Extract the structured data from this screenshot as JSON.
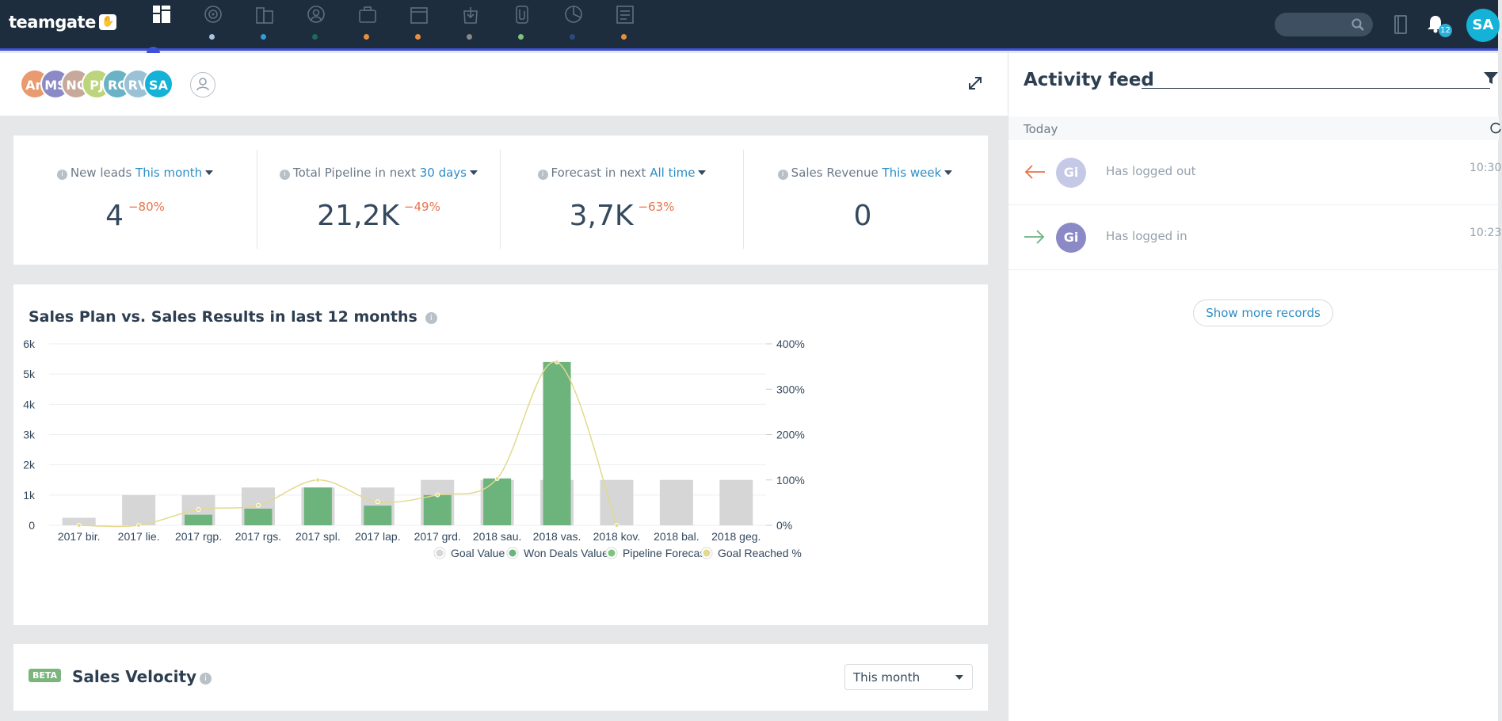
{
  "app": {
    "logo": "teamgate",
    "logo_mark": "✋"
  },
  "nav": {
    "items": [
      {
        "name": "dashboard",
        "dot": "#3f51d6"
      },
      {
        "name": "leads",
        "dot": "#a7c4e0"
      },
      {
        "name": "companies",
        "dot": "#2f9fd6"
      },
      {
        "name": "people",
        "dot": "#1f6b5a"
      },
      {
        "name": "deals",
        "dot": "#e98f3c"
      },
      {
        "name": "calendar",
        "dot": "#e98f3c"
      },
      {
        "name": "tasks",
        "dot": "#888888"
      },
      {
        "name": "files",
        "dot": "#7cc37c"
      },
      {
        "name": "reports",
        "dot": "#2c4a7c"
      },
      {
        "name": "documents",
        "dot": "#e98f3c"
      }
    ]
  },
  "header": {
    "notification_count": "12",
    "user_initials": "SA"
  },
  "users": [
    {
      "initials": "An",
      "color": "#e99a6f"
    },
    {
      "initials": "MS",
      "color": "#8c8ac6"
    },
    {
      "initials": "NC",
      "color": "#c6a99a"
    },
    {
      "initials": "PJ",
      "color": "#bcd47b"
    },
    {
      "initials": "RC",
      "color": "#6ab2c6"
    },
    {
      "initials": "RV",
      "color": "#9bc1d6"
    },
    {
      "initials": "SA",
      "color": "#14b2d6"
    }
  ],
  "kpis": [
    {
      "label": "New leads",
      "period": "This month",
      "value": "4",
      "delta": "−80%"
    },
    {
      "label": "Total Pipeline in next",
      "period": "30 days",
      "value": "21,2K",
      "delta": "−49%"
    },
    {
      "label": "Forecast in next",
      "period": "All time",
      "value": "3,7K",
      "delta": "−63%"
    },
    {
      "label": "Sales Revenue",
      "period": "This week",
      "value": "0",
      "delta": ""
    }
  ],
  "chart_data": {
    "type": "bar",
    "title": "Sales Plan vs. Sales Results in last 12 months",
    "categories": [
      "2017 bir.",
      "2017 lie.",
      "2017 rgp.",
      "2017 rgs.",
      "2017 spl.",
      "2017 lap.",
      "2017 grd.",
      "2018 sau.",
      "2018 vas.",
      "2018 kov.",
      "2018 bal.",
      "2018 geg."
    ],
    "series": [
      {
        "name": "Goal Value",
        "color": "#d6d6d6",
        "values": [
          250,
          1000,
          1000,
          1250,
          1250,
          1250,
          1500,
          1500,
          1500,
          1500,
          1500,
          1500
        ]
      },
      {
        "name": "Won Deals Value",
        "color": "#6db37c",
        "values": [
          0,
          0,
          350,
          550,
          1250,
          650,
          1000,
          1550,
          5400,
          0,
          0,
          0
        ]
      },
      {
        "name": "Pipeline Forecast",
        "color": "#7cc37c",
        "values": [
          0,
          0,
          0,
          0,
          0,
          0,
          0,
          0,
          0,
          0,
          0,
          0
        ]
      },
      {
        "name": "Goal Reached %",
        "color": "#e3d98c",
        "axis": "right",
        "values": [
          0,
          0,
          35,
          44,
          100,
          52,
          67,
          103,
          360,
          0,
          null,
          null
        ]
      }
    ],
    "y_left": {
      "ticks": [
        "0",
        "1k",
        "2k",
        "3k",
        "4k",
        "5k",
        "6k"
      ],
      "range": [
        0,
        6000
      ]
    },
    "y_right": {
      "ticks": [
        "0%",
        "100%",
        "200%",
        "300%",
        "400%"
      ],
      "range": [
        0,
        400
      ]
    },
    "grid": true,
    "legend_position": "bottom-right"
  },
  "velocity": {
    "beta_label": "BETA",
    "title": "Sales Velocity",
    "select_value": "This month"
  },
  "feed": {
    "title": "Activity feed",
    "day_label": "Today",
    "items": [
      {
        "initials": "Gi",
        "avatar_color": "#c5c9e6",
        "text": "Has logged out",
        "time": "10:30",
        "direction": "out",
        "arrow_color": "#e8744b"
      },
      {
        "initials": "Gi",
        "avatar_color": "#8c8ac6",
        "text": "Has logged in",
        "time": "10:23",
        "direction": "in",
        "arrow_color": "#6db37c"
      }
    ],
    "show_more": "Show more records"
  }
}
